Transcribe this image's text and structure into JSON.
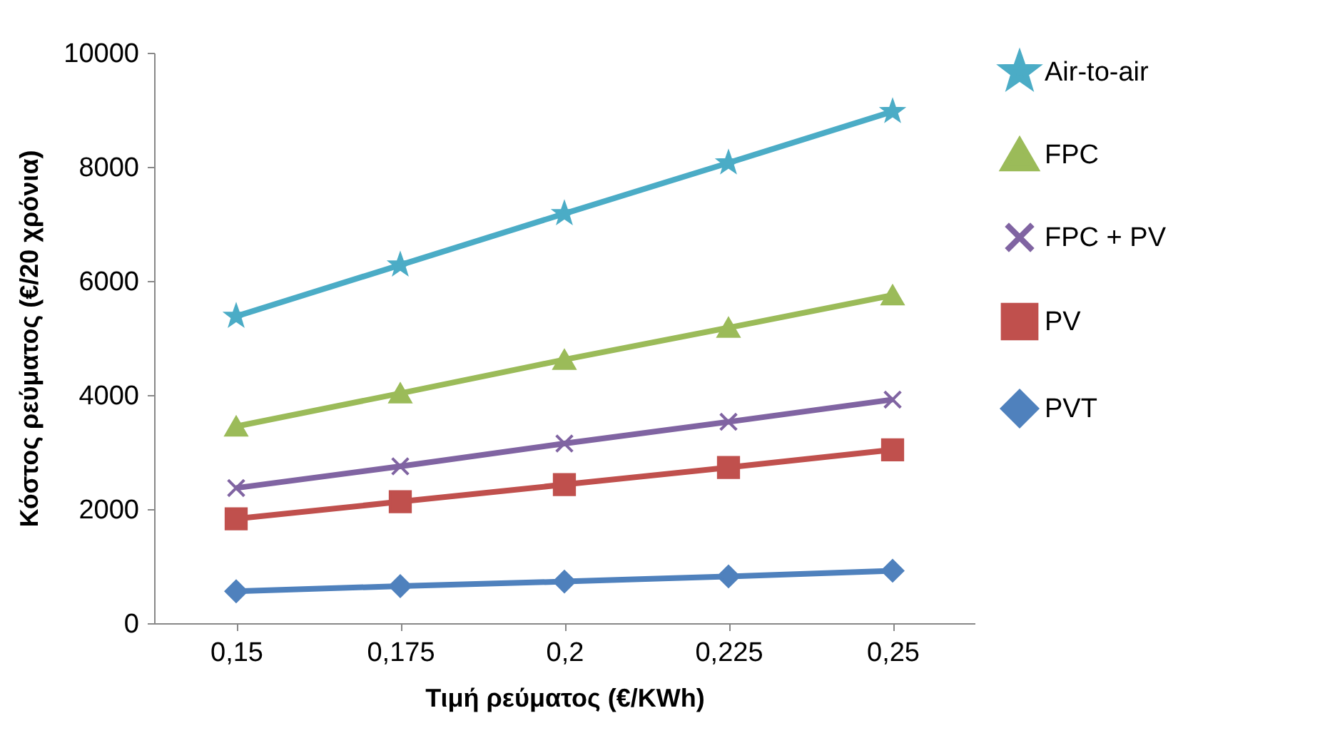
{
  "chart_data": {
    "type": "line",
    "xlabel": "Τιμή ρεύματος (€/KWh)",
    "ylabel": "Κόστος ρεύματος (€/20 χρόνια)",
    "categories": [
      "0,15",
      "0,175",
      "0,2",
      "0,225",
      "0,25"
    ],
    "ylim": [
      0,
      10000
    ],
    "yticks": [
      0,
      2000,
      4000,
      6000,
      8000,
      10000
    ],
    "grid": false,
    "legend": "right",
    "series": [
      {
        "name": "Air-to-air",
        "color": "#4bacc6",
        "marker": "star",
        "values": [
          5380,
          6280,
          7180,
          8070,
          8970
        ]
      },
      {
        "name": "FPC",
        "color": "#9bbb59",
        "marker": "triangle",
        "values": [
          3450,
          4030,
          4620,
          5180,
          5750
        ]
      },
      {
        "name": "FPC + PV",
        "color": "#8064a2",
        "marker": "cross",
        "values": [
          2370,
          2750,
          3150,
          3530,
          3920
        ]
      },
      {
        "name": "PV",
        "color": "#c0504d",
        "marker": "square",
        "values": [
          1830,
          2130,
          2430,
          2730,
          3040
        ]
      },
      {
        "name": "PVT",
        "color": "#4f81bd",
        "marker": "diamond",
        "values": [
          560,
          650,
          730,
          820,
          920
        ]
      }
    ]
  }
}
